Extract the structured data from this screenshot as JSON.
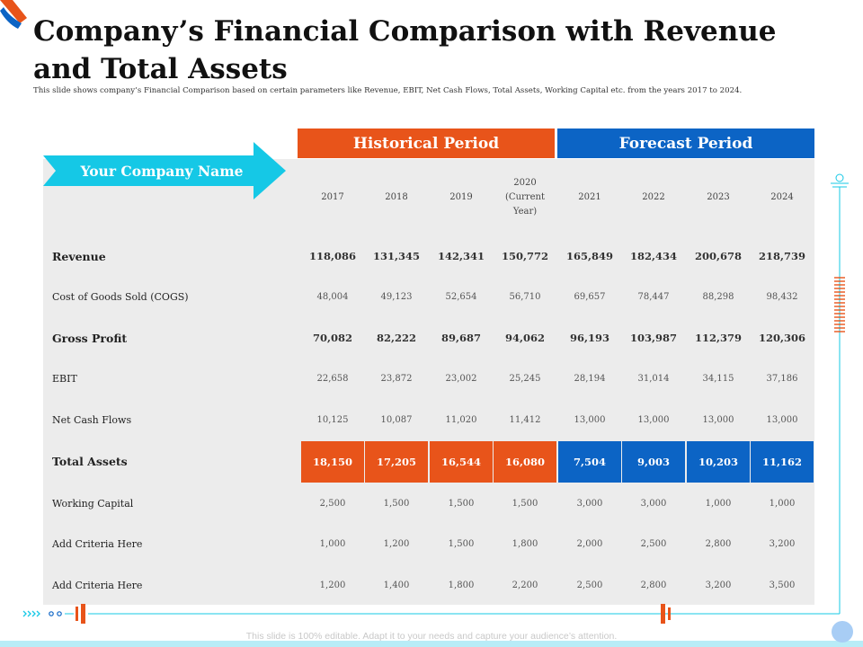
{
  "title": "Company’s Financial Comparison with Revenue and Total Assets",
  "subtitle": "This slide shows company’s Financial Comparison based on certain parameters like Revenue, EBIT, Net Cash Flows, Total Assets, Working Capital etc. from the years 2017 to 2024.",
  "company_label": "Your Company Name",
  "headers": {
    "historical": "Historical Period",
    "forecast": "Forecast Period"
  },
  "years": [
    "2017",
    "2018",
    "2019",
    "2020 (Current Year)",
    "2021",
    "2022",
    "2023",
    "2024"
  ],
  "rows": [
    {
      "label": "Revenue",
      "values": [
        "118,086",
        "131,345",
        "142,341",
        "150,772",
        "165,849",
        "182,434",
        "200,678",
        "218,739"
      ]
    },
    {
      "label": "Cost of Goods Sold (COGS)",
      "values": [
        "48,004",
        "49,123",
        "52,654",
        "56,710",
        "69,657",
        "78,447",
        "88,298",
        "98,432"
      ]
    },
    {
      "label": "Gross Profit",
      "values": [
        "70,082",
        "82,222",
        "89,687",
        "94,062",
        "96,193",
        "103,987",
        "112,379",
        "120,306"
      ]
    },
    {
      "label": "EBIT",
      "values": [
        "22,658",
        "23,872",
        "23,002",
        "25,245",
        "28,194",
        "31,014",
        "34,115",
        "37,186"
      ]
    },
    {
      "label": "Net Cash Flows",
      "values": [
        "10,125",
        "10,087",
        "11,020",
        "11,412",
        "13,000",
        "13,000",
        "13,000",
        "13,000"
      ]
    },
    {
      "label": "Total Assets",
      "values": [
        "18,150",
        "17,205",
        "16,544",
        "16,080",
        "7,504",
        "9,003",
        "10,203",
        "11,162"
      ]
    },
    {
      "label": "Working Capital",
      "values": [
        "2,500",
        "1,500",
        "1,500",
        "1,500",
        "3,000",
        "3,000",
        "1,000",
        "1,000"
      ]
    },
    {
      "label": "Add Criteria Here",
      "values": [
        "1,000",
        "1,200",
        "1,500",
        "1,800",
        "2,000",
        "2,500",
        "2,800",
        "3,200"
      ]
    },
    {
      "label": "Add Criteria Here",
      "values": [
        "1,200",
        "1,400",
        "1,800",
        "2,200",
        "2,500",
        "2,800",
        "3,200",
        "3,500"
      ]
    }
  ],
  "footer": "This slide is 100% editable. Adapt it to your needs and capture your audience’s attention.",
  "colors": {
    "historical": "#e8541a",
    "forecast": "#0c64c5",
    "arrow": "#15c8e6",
    "table_bg": "#ececec"
  }
}
